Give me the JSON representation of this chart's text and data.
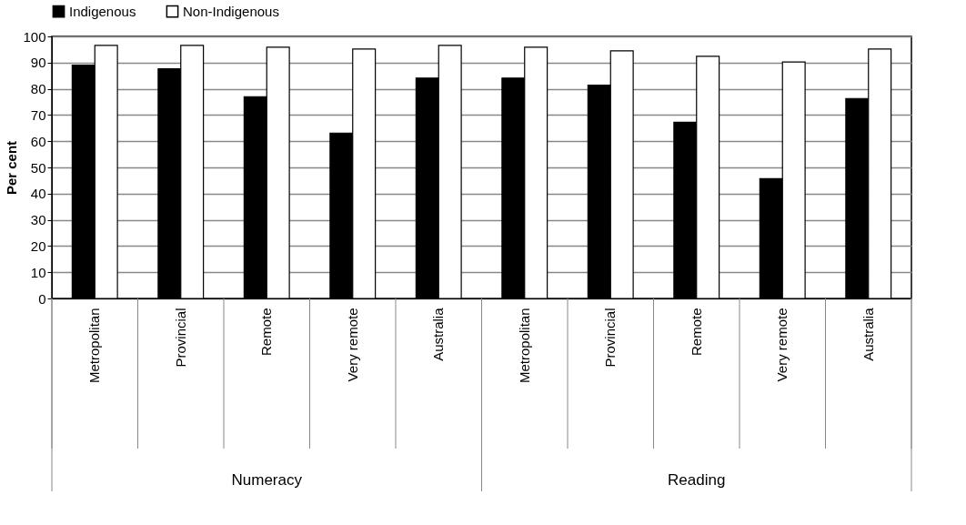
{
  "chart_data": {
    "type": "bar",
    "categories": [
      "Metropolitan",
      "Provincial",
      "Remote",
      "Very remote",
      "Australia",
      "Metropolitan",
      "Provincial",
      "Remote",
      "Very remote",
      "Australia"
    ],
    "series": [
      {
        "name": "Indigenous",
        "color": "#000000",
        "values": [
          89,
          87.6,
          77,
          63.1,
          84.1,
          84.1,
          81.4,
          67.2,
          45.7,
          76.3
        ]
      },
      {
        "name": "Non-Indigenous",
        "color": "#ffffff",
        "values": [
          96.6,
          96.6,
          95.9,
          95.2,
          96.6,
          95.9,
          94.5,
          92.4,
          90.2,
          95.2
        ]
      }
    ],
    "ylabel": "Per cent",
    "ylim": [
      0,
      100
    ],
    "yticks": [
      0,
      10,
      20,
      30,
      40,
      50,
      60,
      70,
      80,
      90,
      100
    ],
    "grid": "y",
    "legend": "top",
    "annotations": [
      "Numeracy",
      "Reading"
    ]
  }
}
